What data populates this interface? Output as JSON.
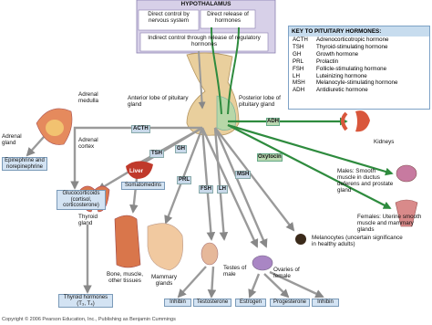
{
  "hypothalamus": {
    "title": "HYPOTHALAMUS",
    "direct_control": "Direct control by nervous system",
    "direct_release": "Direct release of hormones",
    "indirect_control": "Indirect control through release of regulatory hormones"
  },
  "key": {
    "title": "KEY TO PITUITARY HORMONES:",
    "entries": [
      {
        "abbr": "ACTH",
        "name": "Adrenocorticotropic hormone"
      },
      {
        "abbr": "TSH",
        "name": "Thyroid-stimulating hormone"
      },
      {
        "abbr": "GH",
        "name": "Growth hormone"
      },
      {
        "abbr": "PRL",
        "name": "Prolactin"
      },
      {
        "abbr": "FSH",
        "name": "Follicle-stimulating hormone"
      },
      {
        "abbr": "LH",
        "name": "Luteinizing hormone"
      },
      {
        "abbr": "MSH",
        "name": "Melanocyte-stimulating hormone"
      },
      {
        "abbr": "ADH",
        "name": "Antidiuretic hormone"
      }
    ]
  },
  "labels": {
    "anterior_lobe": "Anterior lobe of pituitary gland",
    "posterior_lobe": "Posterior lobe of pituitary gland",
    "adrenal_medulla": "Adrenal medulla",
    "adrenal_cortex": "Adrenal cortex",
    "adrenal_gland": "Adrenal gland",
    "epinephrine": "Epinephrine and norepinephrine",
    "glucocorticoids": "Glucocorticoids (cortisol, corticosterone)",
    "thyroid_gland": "Thyroid gland",
    "thyroid_hormones": "Thyroid hormones (T₃, T₄)",
    "liver": "Liver",
    "somatomedins": "Somatomedins",
    "bone_muscle": "Bone, muscle, other tissues",
    "mammary_glands": "Mammary glands",
    "testes": "Testes of male",
    "ovaries": "Ovaries of female",
    "kidneys": "Kidneys",
    "males": "Males: Smooth muscle in ductus deferens and prostate gland",
    "females": "Females: Uterine smooth muscle and mammary glands",
    "melanocytes": "Melanocytes (uncertain significance in healthy adults)"
  },
  "hormones": {
    "acth": "ACTH",
    "tsh": "TSH",
    "gh": "GH",
    "prl": "PRL",
    "fsh": "FSH",
    "lh": "LH",
    "msh": "MSH",
    "adh": "ADH",
    "oxytocin": "Oxytocin"
  },
  "products": [
    "Inhibin",
    "Testosterone",
    "Estrogen",
    "Progesterone",
    "Inhibin"
  ],
  "copyright": "Copyright © 2006 Pearson Education, Inc., Publishing as Benjamin Cummings"
}
